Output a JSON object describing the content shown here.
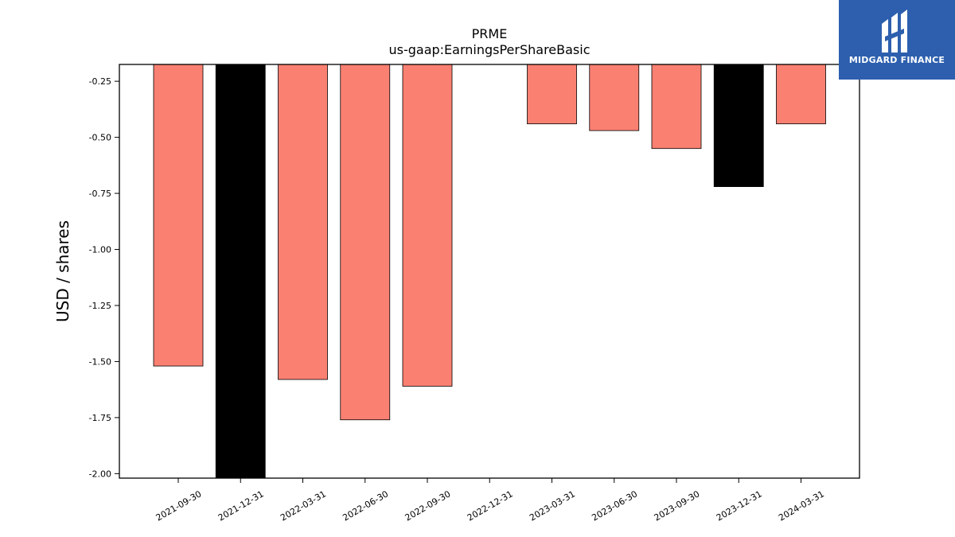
{
  "chart_data": {
    "type": "bar",
    "title": "PRME",
    "subtitle": "us-gaap:EarningsPerShareBasic",
    "xlabel": "",
    "ylabel": "USD / shares",
    "ylim": [
      -2.02,
      -0.175
    ],
    "yticks": [
      "-0.25",
      "-0.50",
      "-0.75",
      "-1.00",
      "-1.25",
      "-1.50",
      "-1.75",
      "-2.00"
    ],
    "ytick_values": [
      -0.25,
      -0.5,
      -0.75,
      -1.0,
      -1.25,
      -1.5,
      -1.75,
      -2.0
    ],
    "categories": [
      "2021-09-30",
      "2021-12-31",
      "2022-03-31",
      "2022-06-30",
      "2022-09-30",
      "2022-12-31",
      "2023-03-31",
      "2023-06-30",
      "2023-09-30",
      "2023-12-31",
      "2024-03-31"
    ],
    "values": [
      -1.52,
      -2.02,
      -1.58,
      -1.76,
      -1.61,
      null,
      -0.44,
      -0.47,
      -0.55,
      -0.72,
      -0.44
    ],
    "bar_colors": [
      "#fa8072",
      "#000000",
      "#fa8072",
      "#fa8072",
      "#fa8072",
      "#fa8072",
      "#fa8072",
      "#fa8072",
      "#fa8072",
      "#000000",
      "#fa8072"
    ],
    "grid": false,
    "legend": "none"
  },
  "logo": {
    "text": "MIDGARD FINANCE",
    "color": "#2d5fae"
  }
}
